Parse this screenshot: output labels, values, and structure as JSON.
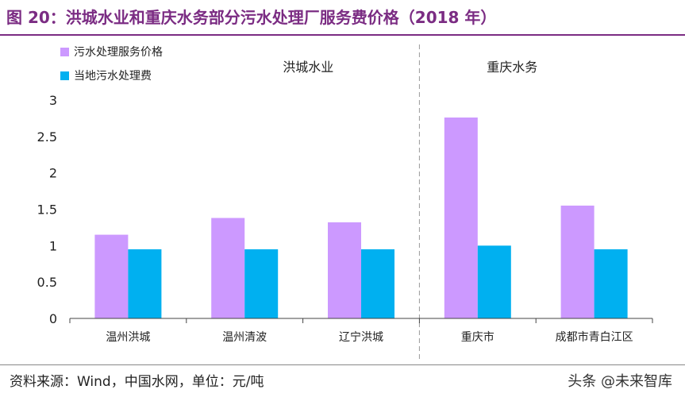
{
  "title": "图 20：洪城水业和重庆水务部分污水处理厂服务费价格（2018 年）",
  "source": "资料来源：Wind，中国水网，单位：元/吨",
  "watermark": "头条 @未来智库",
  "chart_data": {
    "type": "bar",
    "categories": [
      "温州洪城",
      "温州清波",
      "辽宁洪城",
      "重庆市",
      "成都市青白江区"
    ],
    "series": [
      {
        "name": "污水处理服务价格",
        "color": "#cc99ff",
        "values": [
          1.15,
          1.38,
          1.32,
          2.76,
          1.55
        ]
      },
      {
        "name": "当地污水处理费",
        "color": "#00b0f0",
        "values": [
          0.95,
          0.95,
          0.95,
          1.0,
          0.95
        ]
      }
    ],
    "ylim": [
      0,
      3
    ],
    "yticks": [
      "0",
      "0.5",
      "1",
      "1.5",
      "2",
      "2.5",
      "3"
    ],
    "groups": [
      {
        "label": "洪城水业",
        "categories": [
          0,
          1,
          2
        ]
      },
      {
        "label": "重庆水务",
        "categories": [
          3,
          4
        ]
      }
    ],
    "legend_position": "top-left",
    "grid": false
  }
}
